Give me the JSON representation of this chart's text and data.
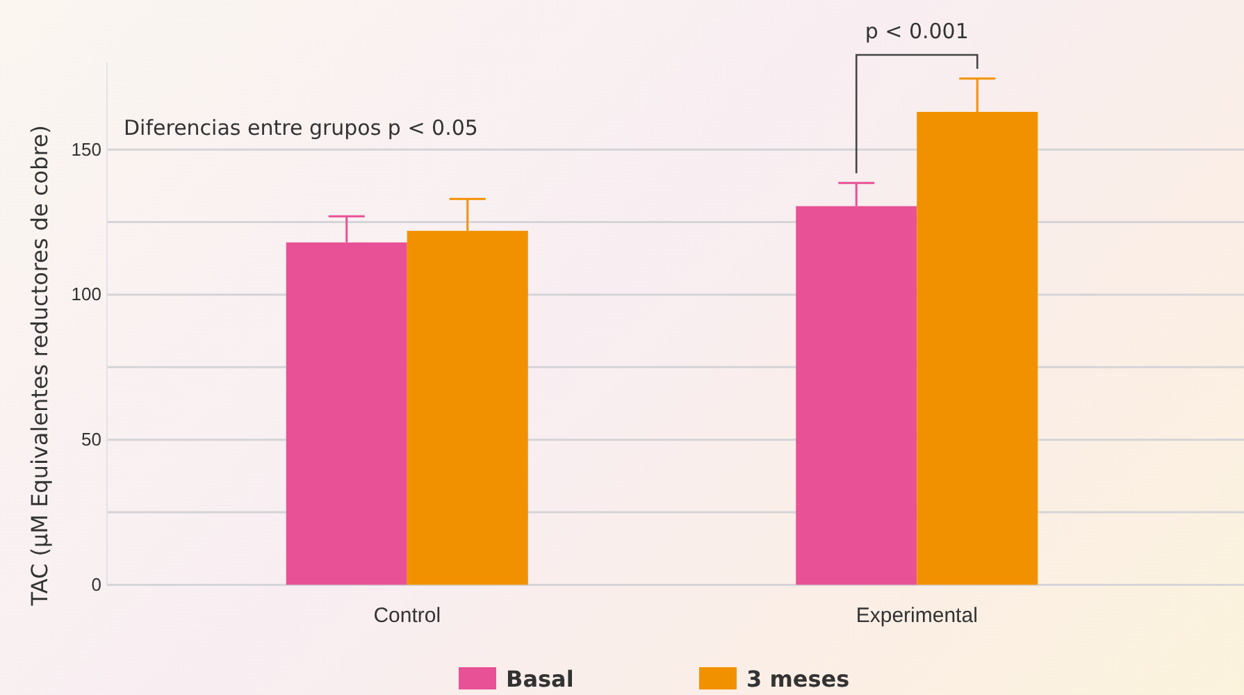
{
  "chart_data": {
    "type": "bar",
    "ylabel": "TAC (µM Equivalentes reductores de cobre)",
    "categories": [
      "Control",
      "Experimental"
    ],
    "series": [
      {
        "name": "Basal",
        "color": "#e85195",
        "values": [
          118,
          130.5
        ],
        "errors": [
          [
            118,
            127
          ],
          [
            130.5,
            138.5
          ]
        ]
      },
      {
        "name": "3 meses",
        "color": "#f29100",
        "values": [
          122,
          163
        ],
        "errors": [
          [
            122,
            133
          ],
          [
            163,
            174.5
          ]
        ]
      }
    ],
    "ylim": [
      0,
      180
    ],
    "yticks": [
      0,
      {
        "value": 25,
        "label": null
      },
      50,
      {
        "value": 75,
        "label": null
      },
      100,
      {
        "value": 125,
        "label": null
      },
      150
    ],
    "grid": "y",
    "legend": "bottom",
    "annotations": [
      "Diferencias entre grupos p < 0.05",
      "p < 0.001"
    ]
  }
}
